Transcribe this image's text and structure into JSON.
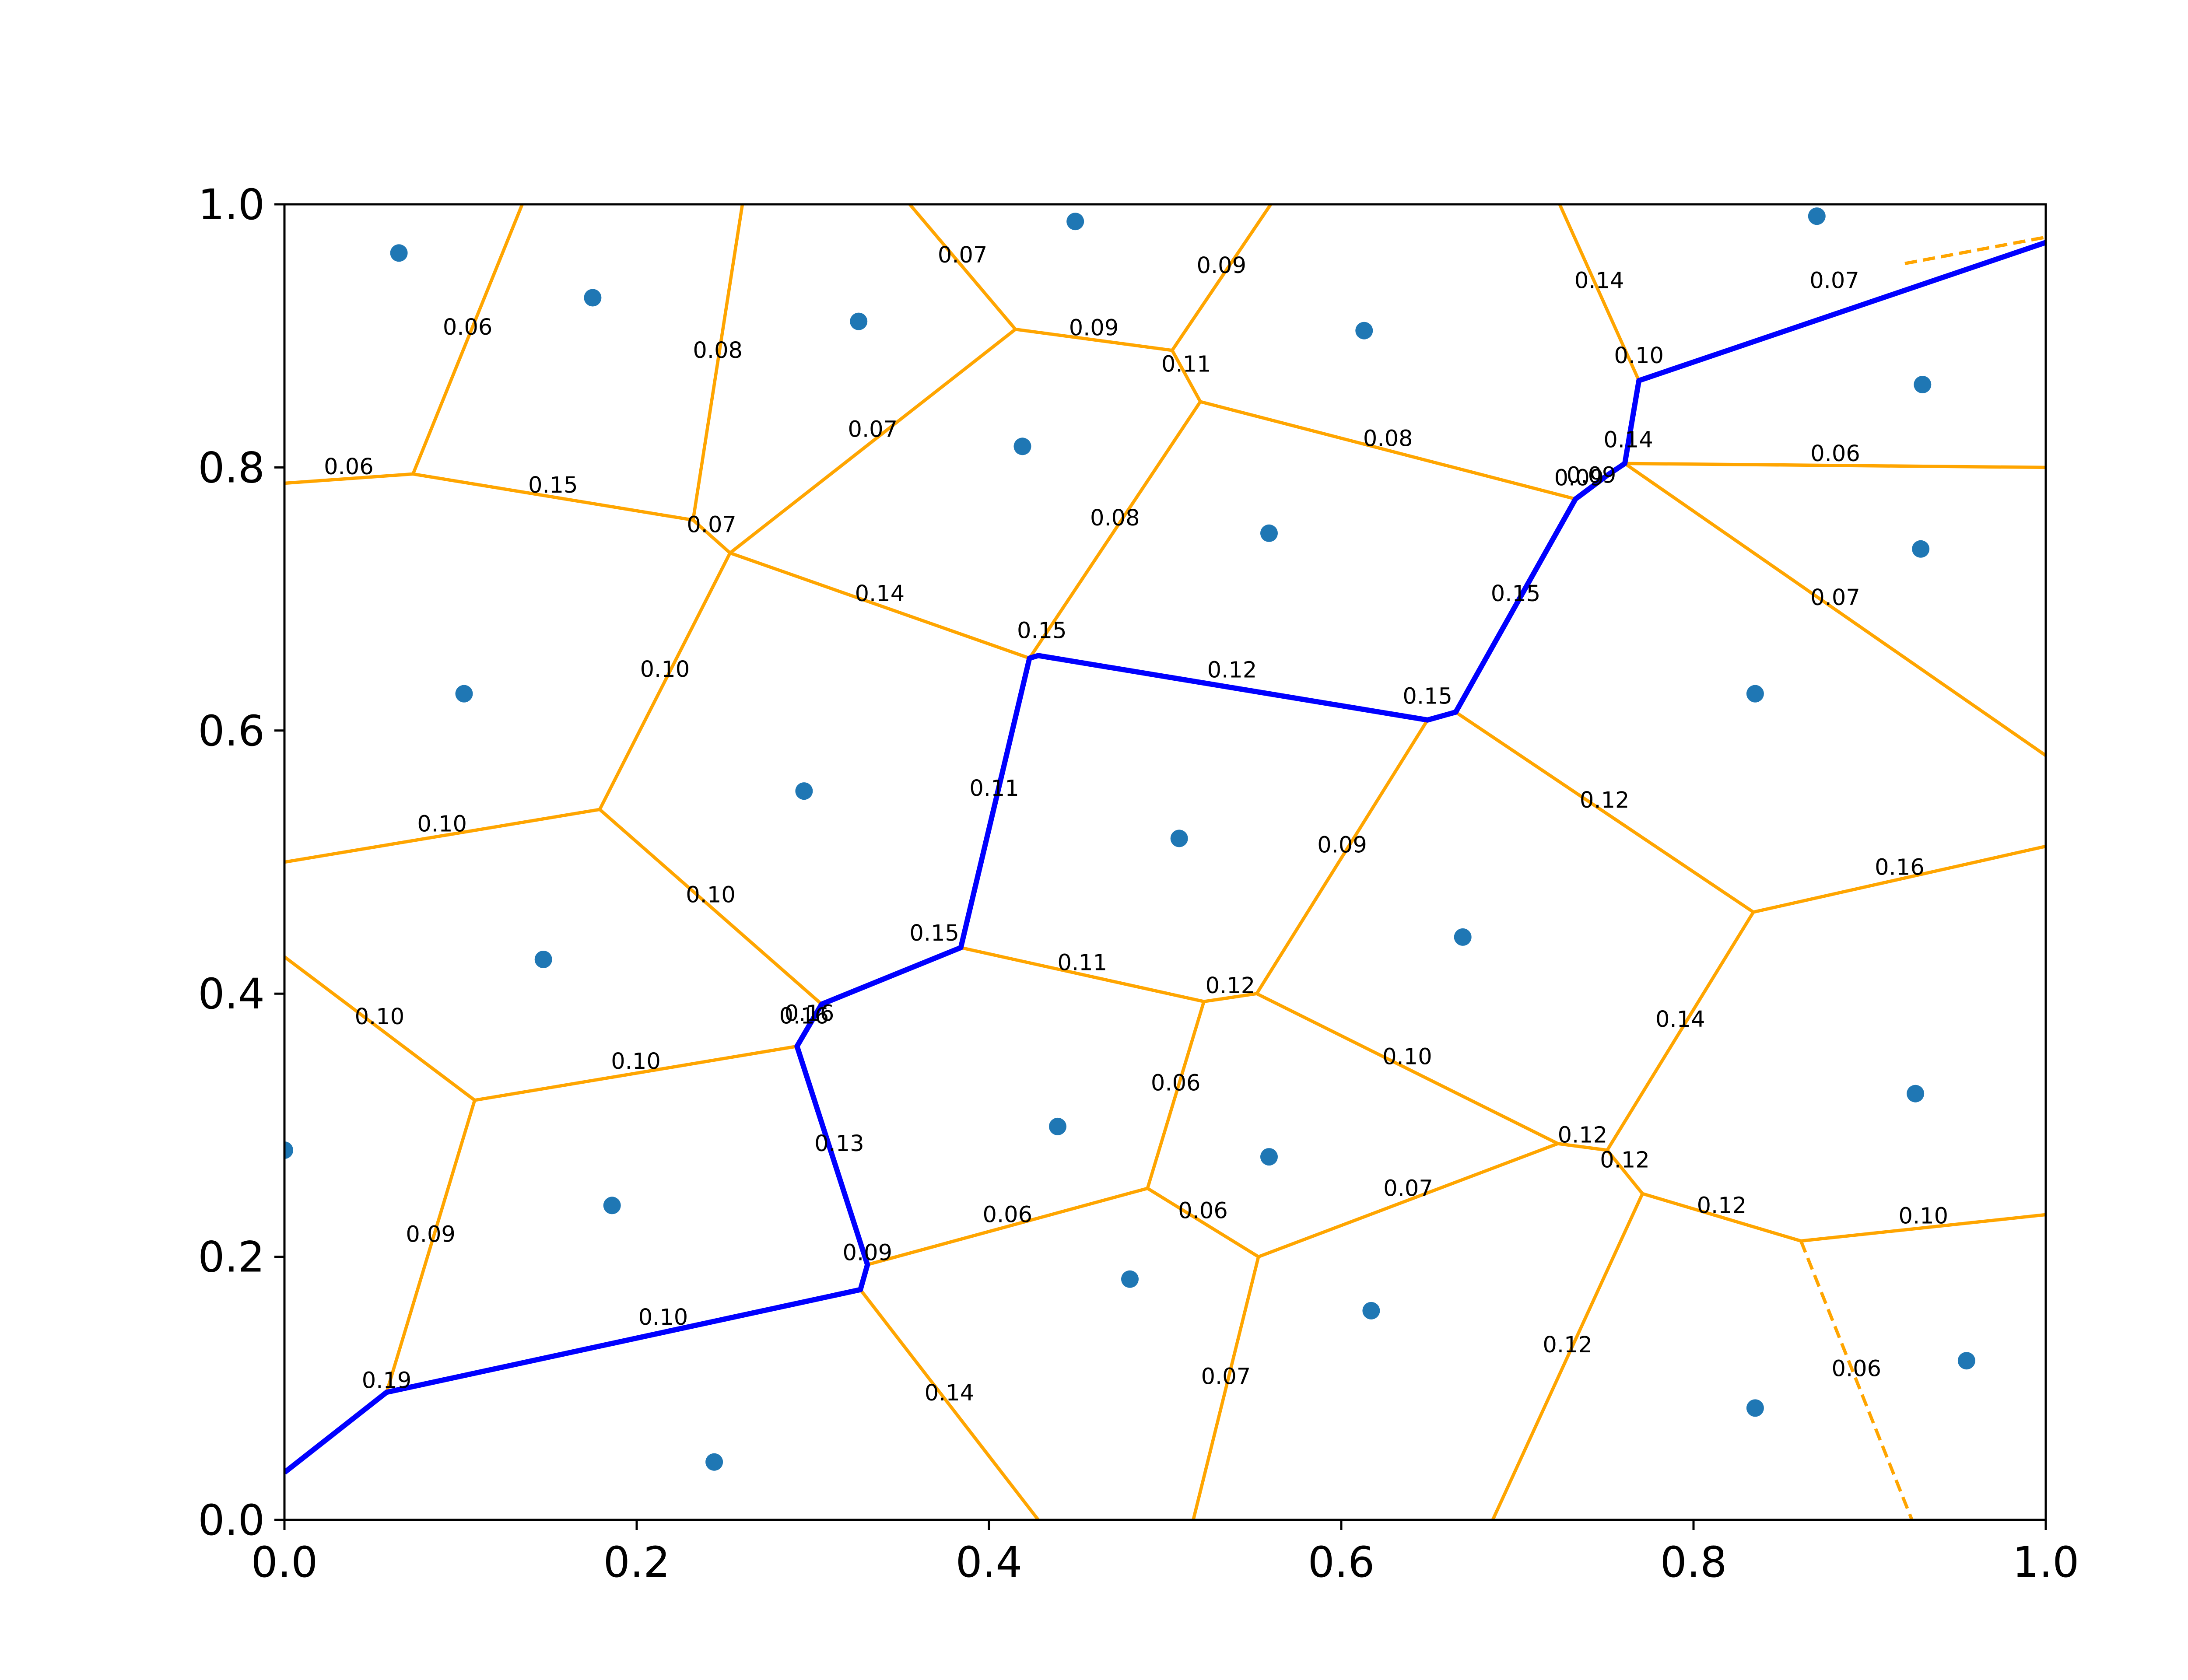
{
  "chart_data": {
    "type": "scatter",
    "title": "",
    "xlabel": "",
    "ylabel": "",
    "xlim": [
      0,
      1
    ],
    "ylim": [
      0,
      1
    ],
    "grid": false,
    "x_ticks": [
      "0.0",
      "0.2",
      "0.4",
      "0.6",
      "0.8",
      "1.0"
    ],
    "y_ticks": [
      "0.0",
      "0.2",
      "0.4",
      "0.6",
      "0.8",
      "1.0"
    ],
    "colors": {
      "points": "#1f77b4",
      "edges": "#ffa500",
      "path": "#0000ff",
      "dashed_edges": "#ffa500"
    },
    "points": [
      [
        0.065,
        0.963
      ],
      [
        0.175,
        0.929
      ],
      [
        0.326,
        0.911
      ],
      [
        0.449,
        0.987
      ],
      [
        0.613,
        0.904
      ],
      [
        0.87,
        0.991
      ],
      [
        0.93,
        0.863
      ],
      [
        0.419,
        0.816
      ],
      [
        0.559,
        0.75
      ],
      [
        0.929,
        0.738
      ],
      [
        0.102,
        0.628
      ],
      [
        0.295,
        0.554
      ],
      [
        0.835,
        0.628
      ],
      [
        0.508,
        0.518
      ],
      [
        0.147,
        0.426
      ],
      [
        0.669,
        0.443
      ],
      [
        0.0,
        0.281
      ],
      [
        0.186,
        0.239
      ],
      [
        0.439,
        0.299
      ],
      [
        0.559,
        0.276
      ],
      [
        0.926,
        0.324
      ],
      [
        0.48,
        0.183
      ],
      [
        0.617,
        0.159
      ],
      [
        0.244,
        0.044
      ],
      [
        0.835,
        0.085
      ],
      [
        0.955,
        0.121
      ]
    ],
    "edges": [
      {
        "p": [
          [
            0.135,
            1.0
          ],
          [
            0.073,
            0.795
          ]
        ],
        "label": "0.06"
      },
      {
        "p": [
          [
            0.26,
            1.0
          ],
          [
            0.232,
            0.76
          ]
        ],
        "label": "0.08"
      },
      {
        "p": [
          [
            0.355,
            1.0
          ],
          [
            0.415,
            0.905
          ]
        ],
        "label": "0.07"
      },
      {
        "p": [
          [
            0.415,
            0.905
          ],
          [
            0.504,
            0.889
          ]
        ],
        "label": "0.09"
      },
      {
        "p": [
          [
            0.56,
            1.0
          ],
          [
            0.504,
            0.889
          ]
        ],
        "label": "0.09"
      },
      {
        "p": [
          [
            0.415,
            0.905
          ],
          [
            0.253,
            0.735
          ]
        ],
        "label": "0.07"
      },
      {
        "p": [
          [
            0.504,
            0.889
          ],
          [
            0.52,
            0.85
          ]
        ],
        "label": "0.11"
      },
      {
        "p": [
          [
            0.52,
            0.85
          ],
          [
            0.733,
            0.776
          ]
        ],
        "label": "0.08"
      },
      {
        "p": [
          [
            0.52,
            0.85
          ],
          [
            0.423,
            0.655
          ]
        ],
        "label": "0.08"
      },
      {
        "p": [
          [
            0.0,
            0.788
          ],
          [
            0.073,
            0.795
          ]
        ],
        "label": "0.06"
      },
      {
        "p": [
          [
            0.073,
            0.795
          ],
          [
            0.232,
            0.76
          ]
        ],
        "label": "0.15"
      },
      {
        "p": [
          [
            0.232,
            0.76
          ],
          [
            0.253,
            0.735
          ]
        ],
        "label": "0.07"
      },
      {
        "p": [
          [
            0.253,
            0.735
          ],
          [
            0.423,
            0.655
          ]
        ],
        "label": "0.14"
      },
      {
        "p": [
          [
            0.253,
            0.735
          ],
          [
            0.179,
            0.54
          ]
        ],
        "label": "0.10"
      },
      {
        "p": [
          [
            0.0,
            0.5
          ],
          [
            0.179,
            0.54
          ]
        ],
        "label": "0.10"
      },
      {
        "p": [
          [
            0.179,
            0.54
          ],
          [
            0.305,
            0.392
          ]
        ],
        "label": "0.10"
      },
      {
        "p": [
          [
            0.0,
            0.428
          ],
          [
            0.108,
            0.319
          ]
        ],
        "label": "0.10"
      },
      {
        "p": [
          [
            0.108,
            0.319
          ],
          [
            0.291,
            0.36
          ]
        ],
        "label": "0.10"
      },
      {
        "p": [
          [
            0.108,
            0.319
          ],
          [
            0.058,
            0.097
          ]
        ],
        "label": "0.09"
      },
      {
        "p": [
          [
            0.291,
            0.36
          ],
          [
            0.305,
            0.392
          ]
        ],
        "label": "0.16"
      },
      {
        "p": [
          [
            0.384,
            0.435
          ],
          [
            0.522,
            0.394
          ]
        ],
        "label": "0.11"
      },
      {
        "p": [
          [
            0.522,
            0.394
          ],
          [
            0.552,
            0.4
          ]
        ],
        "label": "0.12"
      },
      {
        "p": [
          [
            0.522,
            0.394
          ],
          [
            0.49,
            0.252
          ]
        ],
        "label": "0.06"
      },
      {
        "p": [
          [
            0.49,
            0.252
          ],
          [
            0.331,
            0.194
          ]
        ],
        "label": "0.06"
      },
      {
        "p": [
          [
            0.49,
            0.252
          ],
          [
            0.553,
            0.2
          ]
        ],
        "label": "0.06"
      },
      {
        "p": [
          [
            0.553,
            0.2
          ],
          [
            0.723,
            0.286
          ]
        ],
        "label": "0.07"
      },
      {
        "p": [
          [
            0.553,
            0.2
          ],
          [
            0.516,
            0.0
          ]
        ],
        "label": "0.07"
      },
      {
        "p": [
          [
            0.327,
            0.175
          ],
          [
            0.428,
            0.0
          ]
        ],
        "label": "0.14"
      },
      {
        "p": [
          [
            0.552,
            0.4
          ],
          [
            0.649,
            0.608
          ]
        ],
        "label": "0.09"
      },
      {
        "p": [
          [
            0.552,
            0.4
          ],
          [
            0.723,
            0.286
          ]
        ],
        "label": "0.10"
      },
      {
        "p": [
          [
            0.723,
            0.286
          ],
          [
            0.751,
            0.281
          ]
        ],
        "label": "0.12"
      },
      {
        "p": [
          [
            0.665,
            0.614
          ],
          [
            0.834,
            0.462
          ]
        ],
        "label": "0.12"
      },
      {
        "p": [
          [
            0.834,
            0.462
          ],
          [
            1.0,
            0.512
          ]
        ],
        "label": "0.16"
      },
      {
        "p": [
          [
            0.834,
            0.462
          ],
          [
            0.751,
            0.281
          ]
        ],
        "label": "0.14"
      },
      {
        "p": [
          [
            0.751,
            0.281
          ],
          [
            0.771,
            0.248
          ]
        ],
        "label": "0.12"
      },
      {
        "p": [
          [
            0.771,
            0.248
          ],
          [
            0.861,
            0.212
          ]
        ],
        "label": "0.12"
      },
      {
        "p": [
          [
            0.861,
            0.212
          ],
          [
            1.0,
            0.232
          ]
        ],
        "label": "0.10"
      },
      {
        "p": [
          [
            0.771,
            0.248
          ],
          [
            0.686,
            0.0
          ]
        ],
        "label": "0.12"
      },
      {
        "p": [
          [
            0.724,
            1.0
          ],
          [
            0.769,
            0.866
          ]
        ],
        "label": "0.14"
      },
      {
        "p": [
          [
            0.761,
            0.803
          ],
          [
            1.0,
            0.8
          ]
        ],
        "label": "0.06"
      },
      {
        "p": [
          [
            0.761,
            0.803
          ],
          [
            1.0,
            0.581
          ]
        ],
        "label": "0.07"
      },
      {
        "p": [
          [
            0.733,
            0.776
          ],
          [
            0.751,
            0.794
          ]
        ],
        "label": "0.09"
      }
    ],
    "dashed_edges": [
      {
        "p": [
          [
            0.861,
            0.212
          ],
          [
            0.924,
            0.0
          ]
        ],
        "label": "0.06"
      },
      {
        "p": [
          [
            0.92,
            0.955
          ],
          [
            1.0,
            0.975
          ]
        ],
        "label": ""
      }
    ],
    "path": {
      "p": [
        [
          0.0,
          0.036
        ],
        [
          0.058,
          0.097
        ],
        [
          0.327,
          0.175
        ],
        [
          0.331,
          0.194
        ],
        [
          0.291,
          0.36
        ],
        [
          0.305,
          0.392
        ],
        [
          0.384,
          0.435
        ],
        [
          0.423,
          0.655
        ],
        [
          0.428,
          0.657
        ],
        [
          0.649,
          0.608
        ],
        [
          0.665,
          0.614
        ],
        [
          0.733,
          0.776
        ],
        [
          0.751,
          0.794
        ],
        [
          0.761,
          0.803
        ],
        [
          0.769,
          0.866
        ],
        [
          1.0,
          0.971
        ]
      ],
      "labels": [
        "0.19",
        "0.10",
        "0.09",
        "0.13",
        "0.16",
        "0.15",
        "0.11",
        "0.15",
        "0.12",
        "0.15",
        "0.15",
        "0.09",
        "0.14",
        "0.10",
        "0.07"
      ]
    },
    "path_label_positions": [
      [
        0.058,
        0.097
      ],
      [
        0.215,
        0.145
      ],
      [
        0.331,
        0.194
      ],
      [
        0.315,
        0.277
      ],
      [
        0.295,
        0.374
      ],
      [
        0.369,
        0.437
      ],
      [
        0.403,
        0.547
      ],
      [
        0.43,
        0.667
      ],
      [
        0.538,
        0.637
      ],
      [
        0.649,
        0.617
      ],
      [
        0.699,
        0.695
      ],
      [
        0.735,
        0.783
      ],
      [
        0.763,
        0.812
      ],
      [
        0.769,
        0.876
      ],
      [
        0.88,
        0.933
      ]
    ]
  }
}
